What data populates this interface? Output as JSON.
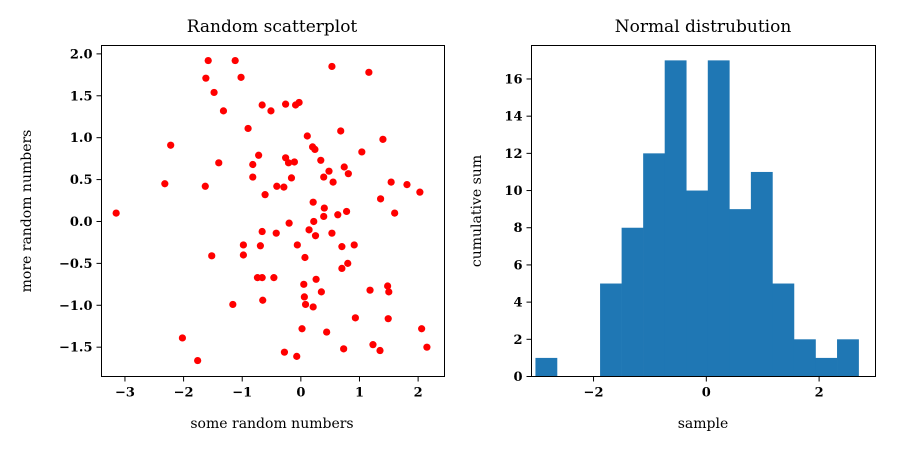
{
  "chart_data": [
    {
      "type": "scatter",
      "title": "Random scatterplot",
      "xlabel": "some random numbers",
      "ylabel": "more random numbers",
      "xlim": [
        -3.4,
        2.45
      ],
      "ylim": [
        -1.85,
        2.1
      ],
      "xticks": [
        -3,
        -2,
        -1,
        0,
        1,
        2
      ],
      "yticks": [
        -1.5,
        -1.0,
        -0.5,
        0.0,
        0.5,
        1.0,
        1.5,
        2.0
      ],
      "xtick_labels": [
        "−3",
        "−2",
        "−1",
        "0",
        "1",
        "2"
      ],
      "ytick_labels": [
        "−1.5",
        "−1.0",
        "−0.5",
        "0.0",
        "0.5",
        "1.0",
        "1.5",
        "2.0"
      ],
      "grid": false,
      "point_color": "#ff0000",
      "points": [
        [
          -3.15,
          0.1
        ],
        [
          -2.22,
          0.91
        ],
        [
          -2.32,
          0.45
        ],
        [
          -2.02,
          -1.39
        ],
        [
          -1.76,
          -1.66
        ],
        [
          -1.58,
          1.92
        ],
        [
          -1.62,
          1.71
        ],
        [
          -1.48,
          1.54
        ],
        [
          -1.32,
          1.32
        ],
        [
          -1.12,
          1.92
        ],
        [
          -1.02,
          1.72
        ],
        [
          -0.9,
          1.11
        ],
        [
          -0.66,
          1.39
        ],
        [
          -0.51,
          1.32
        ],
        [
          -0.26,
          1.4
        ],
        [
          -0.09,
          1.39
        ],
        [
          -0.03,
          1.42
        ],
        [
          0.53,
          1.85
        ],
        [
          1.16,
          1.78
        ],
        [
          -1.4,
          0.7
        ],
        [
          -1.63,
          0.42
        ],
        [
          -0.82,
          0.68
        ],
        [
          -0.72,
          0.79
        ],
        [
          -0.82,
          0.53
        ],
        [
          -0.61,
          0.32
        ],
        [
          -0.41,
          0.42
        ],
        [
          -0.29,
          0.41
        ],
        [
          -0.21,
          0.7
        ],
        [
          -0.26,
          0.76
        ],
        [
          -0.16,
          0.52
        ],
        [
          -0.11,
          0.71
        ],
        [
          0.11,
          1.02
        ],
        [
          0.2,
          0.89
        ],
        [
          0.24,
          0.86
        ],
        [
          0.34,
          0.73
        ],
        [
          0.68,
          1.08
        ],
        [
          0.48,
          0.6
        ],
        [
          0.39,
          0.53
        ],
        [
          0.74,
          0.65
        ],
        [
          0.55,
          0.47
        ],
        [
          0.81,
          0.57
        ],
        [
          1.04,
          0.83
        ],
        [
          1.4,
          0.98
        ],
        [
          1.54,
          0.47
        ],
        [
          1.36,
          0.27
        ],
        [
          1.81,
          0.44
        ],
        [
          2.03,
          0.35
        ],
        [
          1.6,
          0.1
        ],
        [
          -1.52,
          -0.41
        ],
        [
          -0.98,
          -0.28
        ],
        [
          -0.98,
          -0.4
        ],
        [
          -0.69,
          -0.29
        ],
        [
          -0.66,
          -0.12
        ],
        [
          -0.42,
          -0.14
        ],
        [
          -0.2,
          -0.02
        ],
        [
          -0.06,
          -0.28
        ],
        [
          0.07,
          -0.43
        ],
        [
          0.14,
          -0.1
        ],
        [
          0.22,
          0.0
        ],
        [
          0.25,
          -0.17
        ],
        [
          0.21,
          0.23
        ],
        [
          0.39,
          0.06
        ],
        [
          0.4,
          0.16
        ],
        [
          0.53,
          -0.14
        ],
        [
          0.63,
          0.08
        ],
        [
          0.78,
          0.12
        ],
        [
          0.7,
          -0.3
        ],
        [
          0.91,
          -0.28
        ],
        [
          0.8,
          -0.5
        ],
        [
          0.7,
          -0.56
        ],
        [
          -0.74,
          -0.67
        ],
        [
          -0.66,
          -0.67
        ],
        [
          -0.46,
          -0.67
        ],
        [
          -0.65,
          -0.94
        ],
        [
          -1.16,
          -0.99
        ],
        [
          0.05,
          -0.75
        ],
        [
          0.06,
          -0.9
        ],
        [
          0.08,
          -0.99
        ],
        [
          0.21,
          -1.02
        ],
        [
          0.26,
          -0.69
        ],
        [
          0.35,
          -0.84
        ],
        [
          0.44,
          -1.32
        ],
        [
          0.93,
          -1.15
        ],
        [
          1.18,
          -0.82
        ],
        [
          1.48,
          -0.77
        ],
        [
          1.5,
          -0.84
        ],
        [
          1.49,
          -1.16
        ],
        [
          -0.28,
          -1.56
        ],
        [
          -0.07,
          -1.61
        ],
        [
          0.02,
          -1.28
        ],
        [
          0.73,
          -1.52
        ],
        [
          1.23,
          -1.47
        ],
        [
          1.35,
          -1.54
        ],
        [
          2.06,
          -1.28
        ],
        [
          2.15,
          -1.5
        ]
      ]
    },
    {
      "type": "bar",
      "title": "Normal distrubution",
      "xlabel": "sample",
      "ylabel": "cumulative sum",
      "xlim": [
        -3.1,
        3.0
      ],
      "ylim": [
        0,
        17.8
      ],
      "xticks": [
        -2,
        0,
        2
      ],
      "yticks": [
        0,
        2,
        4,
        6,
        8,
        10,
        12,
        14,
        16
      ],
      "xtick_labels": [
        "−2",
        "0",
        "2"
      ],
      "ytick_labels": [
        "0",
        "2",
        "4",
        "6",
        "8",
        "10",
        "12",
        "14",
        "16"
      ],
      "grid": false,
      "bar_color": "#1f77b4",
      "bin_start": -3.03,
      "bin_width": 0.382,
      "counts": [
        1,
        0,
        0,
        5,
        8,
        12,
        17,
        10,
        17,
        9,
        11,
        5,
        2,
        1,
        2
      ]
    }
  ]
}
